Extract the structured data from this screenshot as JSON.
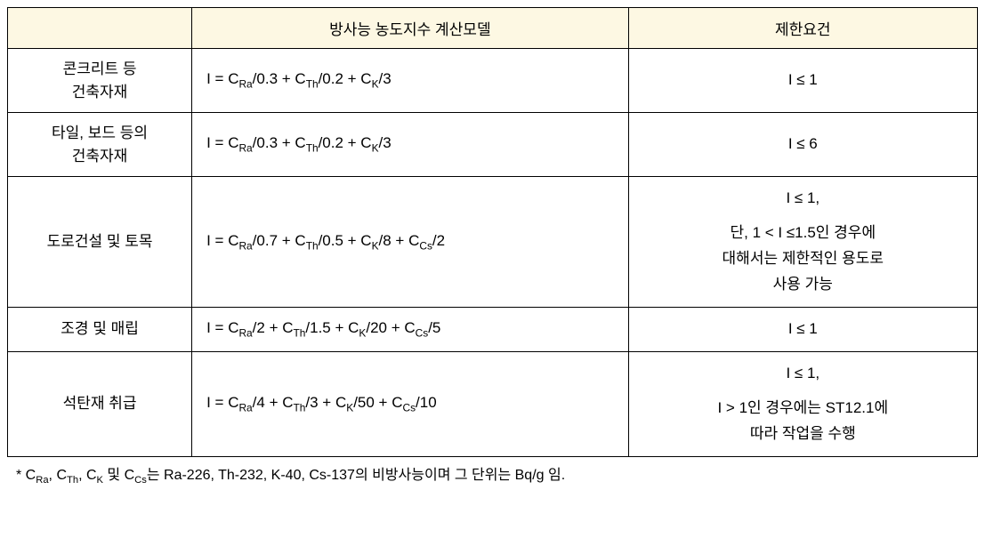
{
  "table": {
    "headers": {
      "category": "",
      "formula": "방사능 농도지수 계산모델",
      "constraint": "제한요건"
    },
    "rows": [
      {
        "category_html": "콘크리트 등<br>건축자재",
        "formula_html": "I = C<sub>Ra</sub>/0.3 + C<sub>Th</sub>/0.2 + C<sub>K</sub>/3",
        "constraint_html": "I ≤ 1"
      },
      {
        "category_html": "타일, 보드 등의<br>건축자재",
        "formula_html": "I = C<sub>Ra</sub>/0.3 + C<sub>Th</sub>/0.2 + C<sub>K</sub>/3",
        "constraint_html": "I ≤ 6"
      },
      {
        "category_html": "도로건설 및 토목",
        "formula_html": "I = C<sub>Ra</sub>/0.7 + C<sub>Th</sub>/0.5 + C<sub>K</sub>/8 + C<sub>Cs</sub>/2",
        "constraint_html": "I ≤ 1,<span class=\"spacer\"></span>단, 1 &lt; I ≤1.5인 경우에<br>대해서는 제한적인 용도로<br>사용 가능"
      },
      {
        "category_html": "조경 및 매립",
        "formula_html": "I = C<sub>Ra</sub>/2 + C<sub>Th</sub>/1.5 + C<sub>K</sub>/20 + C<sub>Cs</sub>/5",
        "constraint_html": "I ≤ 1"
      },
      {
        "category_html": "석탄재 취급",
        "formula_html": "I = C<sub>Ra</sub>/4 + C<sub>Th</sub>/3 + C<sub>K</sub>/50 + C<sub>Cs</sub>/10",
        "constraint_html": "I ≤ 1,<span class=\"spacer\"></span>I &gt; 1인 경우에는 ST12.1에<br>따라 작업을 수행"
      }
    ],
    "footnote_html": "* C<sub>Ra</sub>, C<sub>Th</sub>, C<sub>K</sub> 및 C<sub>Cs</sub>는 Ra-226, Th-232, K-40, Cs-137의 비방사능이며 그 단위는 Bq/g 임."
  },
  "style": {
    "header_bg": "#fdf8e3",
    "border_color": "#000000",
    "font_size_body": 17,
    "font_size_footnote": 16,
    "col_widths_pct": [
      19,
      45,
      36
    ]
  }
}
